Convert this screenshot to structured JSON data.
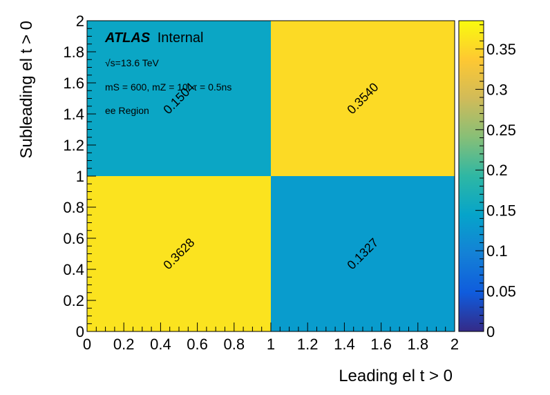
{
  "chart_data": {
    "type": "heatmap",
    "xlabel": "Leading el t > 0",
    "ylabel": "Subleading el t > 0",
    "xlim": [
      0,
      2
    ],
    "ylim": [
      0,
      2
    ],
    "x_bins": [
      0,
      1,
      2
    ],
    "y_bins": [
      0,
      1,
      2
    ],
    "x_ticks": [
      "0",
      "0.2",
      "0.4",
      "0.6",
      "0.8",
      "1",
      "1.2",
      "1.4",
      "1.6",
      "1.8",
      "2"
    ],
    "y_ticks": [
      "0",
      "0.2",
      "0.4",
      "0.6",
      "0.8",
      "1",
      "1.2",
      "1.4",
      "1.6",
      "1.8",
      "2"
    ],
    "cells": [
      {
        "x": 0,
        "y": 0,
        "value": 0.3628,
        "label": "0.3628"
      },
      {
        "x": 1,
        "y": 0,
        "value": 0.1327,
        "label": "0.1327"
      },
      {
        "x": 0,
        "y": 1,
        "value": 0.1504,
        "label": "0.1504"
      },
      {
        "x": 1,
        "y": 1,
        "value": 0.354,
        "label": "0.3540"
      }
    ],
    "colorbar": {
      "min": 0,
      "max": 0.385,
      "ticks": [
        0,
        0.05,
        0.1,
        0.15,
        0.2,
        0.25,
        0.3,
        0.35
      ],
      "tick_labels": [
        "0",
        "0.05",
        "0.1",
        "0.15",
        "0.2",
        "0.25",
        "0.3",
        "0.35"
      ],
      "colormap": [
        "#352a87",
        "#0f5cdd",
        "#1481d6",
        "#06a4ca",
        "#2eb7a4",
        "#87bf77",
        "#d1bb59",
        "#fec832",
        "#f9fb0e"
      ]
    }
  },
  "annotations": {
    "atlas_bold": "ATLAS",
    "atlas_status": "Internal",
    "energy": "√s=13.6 TeV",
    "model": "mS = 600, mZ = 10, τ = 0.5ns",
    "region": "ee Region"
  }
}
